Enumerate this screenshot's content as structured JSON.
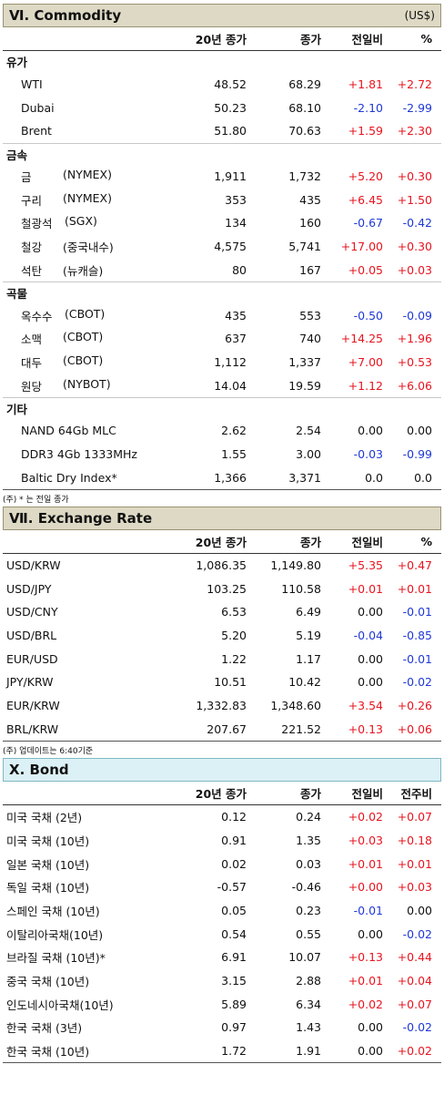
{
  "commodity": {
    "title": "Ⅵ. Commodity",
    "unit": "(US$)",
    "headers": [
      "20년 종가",
      "종가",
      "전일비",
      "%"
    ],
    "groups": [
      {
        "name": "유가",
        "rows": [
          {
            "a": "WTI",
            "b": "",
            "v1": "48.52",
            "v2": "68.29",
            "v3": "+1.81",
            "v4": "+2.72"
          },
          {
            "a": "Dubai",
            "b": "",
            "v1": "50.23",
            "v2": "68.10",
            "v3": "-2.10",
            "v4": "-2.99"
          },
          {
            "a": "Brent",
            "b": "",
            "v1": "51.80",
            "v2": "70.63",
            "v3": "+1.59",
            "v4": "+2.30"
          }
        ]
      },
      {
        "name": "금속",
        "rows": [
          {
            "a": "금",
            "b": "(NYMEX)",
            "v1": "1,911",
            "v2": "1,732",
            "v3": "+5.20",
            "v4": "+0.30"
          },
          {
            "a": "구리",
            "b": "(NYMEX)",
            "v1": "353",
            "v2": "435",
            "v3": "+6.45",
            "v4": "+1.50"
          },
          {
            "a": "철광석",
            "b": "(SGX)",
            "v1": "134",
            "v2": "160",
            "v3": "-0.67",
            "v4": "-0.42"
          },
          {
            "a": "철강",
            "b": "(중국내수)",
            "v1": "4,575",
            "v2": "5,741",
            "v3": "+17.00",
            "v4": "+0.30"
          },
          {
            "a": "석탄",
            "b": "(뉴캐슬)",
            "v1": "80",
            "v2": "167",
            "v3": "+0.05",
            "v4": "+0.03"
          }
        ]
      },
      {
        "name": "곡물",
        "rows": [
          {
            "a": "옥수수",
            "b": "(CBOT)",
            "v1": "435",
            "v2": "553",
            "v3": "-0.50",
            "v4": "-0.09"
          },
          {
            "a": "소맥",
            "b": "(CBOT)",
            "v1": "637",
            "v2": "740",
            "v3": "+14.25",
            "v4": "+1.96"
          },
          {
            "a": "대두",
            "b": "(CBOT)",
            "v1": "1,112",
            "v2": "1,337",
            "v3": "+7.00",
            "v4": "+0.53"
          },
          {
            "a": "원당",
            "b": "(NYBOT)",
            "v1": "14.04",
            "v2": "19.59",
            "v3": "+1.12",
            "v4": "+6.06"
          }
        ]
      },
      {
        "name": "기타",
        "rows": [
          {
            "a": "NAND 64Gb MLC",
            "b": "",
            "v1": "2.62",
            "v2": "2.54",
            "v3": "0.00",
            "v4": "0.00"
          },
          {
            "a": "DDR3 4Gb 1333MHz",
            "b": "",
            "v1": "1.55",
            "v2": "3.00",
            "v3": "-0.03",
            "v4": "-0.99"
          },
          {
            "a": "Baltic Dry Index*",
            "b": "",
            "v1": "1,366",
            "v2": "3,371",
            "v3": "0.0",
            "v4": "0.0"
          }
        ]
      }
    ],
    "note": "(주) * 는 전일 종가"
  },
  "exchange": {
    "title": "Ⅶ. Exchange Rate",
    "headers": [
      "20년 종가",
      "종가",
      "전일비",
      "%"
    ],
    "rows": [
      {
        "a": "USD/KRW",
        "v1": "1,086.35",
        "v2": "1,149.80",
        "v3": "+5.35",
        "v4": "+0.47"
      },
      {
        "a": "USD/JPY",
        "v1": "103.25",
        "v2": "110.58",
        "v3": "+0.01",
        "v4": "+0.01"
      },
      {
        "a": "USD/CNY",
        "v1": "6.53",
        "v2": "6.49",
        "v3": "0.00",
        "v4": "-0.01"
      },
      {
        "a": "USD/BRL",
        "v1": "5.20",
        "v2": "5.19",
        "v3": "-0.04",
        "v4": "-0.85"
      },
      {
        "a": "EUR/USD",
        "v1": "1.22",
        "v2": "1.17",
        "v3": "0.00",
        "v4": "-0.01"
      },
      {
        "a": "JPY/KRW",
        "v1": "10.51",
        "v2": "10.42",
        "v3": "0.00",
        "v4": "-0.02"
      },
      {
        "a": "EUR/KRW",
        "v1": "1,332.83",
        "v2": "1,348.60",
        "v3": "+3.54",
        "v4": "+0.26"
      },
      {
        "a": "BRL/KRW",
        "v1": "207.67",
        "v2": "221.52",
        "v3": "+0.13",
        "v4": "+0.06"
      }
    ],
    "note": "(주) 업데이트는 6:40기준"
  },
  "bond": {
    "title": "X. Bond",
    "headers": [
      "20년 종가",
      "종가",
      "전일비",
      "전주비"
    ],
    "rows": [
      {
        "a": "미국 국채 (2년)",
        "v1": "0.12",
        "v2": "0.24",
        "v3": "+0.02",
        "v4": "+0.07"
      },
      {
        "a": "미국 국채 (10년)",
        "v1": "0.91",
        "v2": "1.35",
        "v3": "+0.03",
        "v4": "+0.18"
      },
      {
        "a": "일본 국채 (10년)",
        "v1": "0.02",
        "v2": "0.03",
        "v3": "+0.01",
        "v4": "+0.01"
      },
      {
        "a": "독일 국채 (10년)",
        "v1": "-0.57",
        "v2": "-0.46",
        "v3": "+0.00",
        "v4": "+0.03"
      },
      {
        "a": "스페인 국채 (10년)",
        "v1": "0.05",
        "v2": "0.23",
        "v3": "-0.01",
        "v4": "0.00"
      },
      {
        "a": "이탈리아국채(10년)",
        "v1": "0.54",
        "v2": "0.55",
        "v3": "0.00",
        "v4": "-0.02"
      },
      {
        "a": "브라질 국채 (10년)*",
        "v1": "6.91",
        "v2": "10.07",
        "v3": "+0.13",
        "v4": "+0.44"
      },
      {
        "a": "중국 국채 (10년)",
        "v1": "3.15",
        "v2": "2.88",
        "v3": "+0.01",
        "v4": "+0.04"
      },
      {
        "a": "인도네시아국채(10년)",
        "v1": "5.89",
        "v2": "6.34",
        "v3": "+0.02",
        "v4": "+0.07"
      },
      {
        "a": "한국 국채 (3년)",
        "v1": "0.97",
        "v2": "1.43",
        "v3": "0.00",
        "v4": "-0.02"
      },
      {
        "a": "한국 국채 (10년)",
        "v1": "1.72",
        "v2": "1.91",
        "v3": "0.00",
        "v4": "+0.02"
      }
    ]
  },
  "colors": {
    "positive": "#e8141f",
    "negative": "#1f38d6",
    "commodity_header_bg": "#ddd9c4",
    "bond_header_bg": "#dcf1f5"
  }
}
